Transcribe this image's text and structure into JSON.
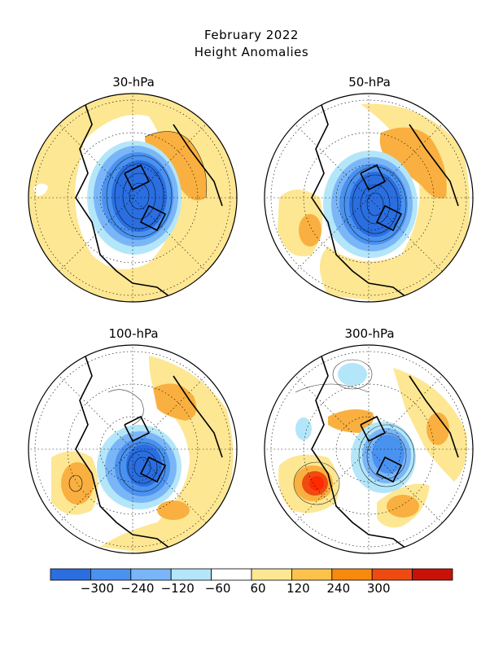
{
  "figure": {
    "title_line1": "February 2022",
    "title_line2": "Height Anomalies"
  },
  "panels": [
    {
      "label": "30-hPa"
    },
    {
      "label": "50-hPa"
    },
    {
      "label": "100-hPa"
    },
    {
      "label": "300-hPa"
    }
  ],
  "colorbar": {
    "colors": [
      "#2a6ee0",
      "#4a92f0",
      "#7ab6f7",
      "#b4e6f9",
      "#ffffff",
      "#fde793",
      "#fdc24c",
      "#f78a0c",
      "#ee4a12",
      "#c71209"
    ],
    "tick_labels": [
      "-300",
      "-240",
      "-120",
      "-60",
      "60",
      "120",
      "240",
      "300"
    ]
  }
}
